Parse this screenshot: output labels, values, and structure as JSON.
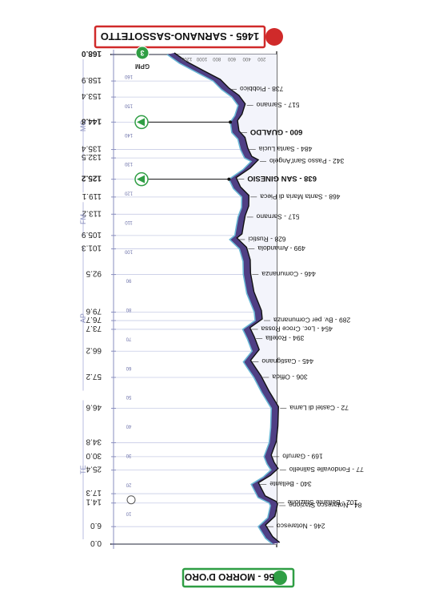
{
  "chart_data": {
    "type": "area",
    "orientation": "rotated-180",
    "start": {
      "altitude": "56",
      "name": "MORRO D'ORO",
      "label": "56 - MORRO D'ORO"
    },
    "finish": {
      "altitude": "1465",
      "name": "SARNANO-SASSOTETTO",
      "label": "1465 - SARNANO-SASSOTETTO"
    },
    "altitude_ticks": [
      "200",
      "400",
      "600",
      "800",
      "1000",
      "1200"
    ],
    "km_ticks": [
      "10",
      "20",
      "30",
      "40",
      "50",
      "60",
      "70",
      "80",
      "90",
      "100",
      "110",
      "120",
      "130",
      "140",
      "150",
      "160"
    ],
    "zones": [
      {
        "name": "TE",
        "from_km": 0,
        "to_km": 51
      },
      {
        "name": "AP",
        "from_km": 51,
        "to_km": 104
      },
      {
        "name": "FM",
        "from_km": 104,
        "to_km": 119
      },
      {
        "name": "MC",
        "from_km": 119,
        "to_km": 168
      }
    ],
    "profile": [
      {
        "km": 0.0,
        "altitude": 56
      },
      {
        "km": 2,
        "altitude": 150
      },
      {
        "km": 6.0,
        "altitude": 246,
        "label": "246 - Notaresco"
      },
      {
        "km": 9,
        "altitude": 120
      },
      {
        "km": 13.2,
        "altitude": 84,
        "label": "84 - Notaresco Stazione"
      },
      {
        "km": 14.1,
        "altitude": 102,
        "label": "102 - Bellante Stazione"
      },
      {
        "km": 16,
        "altitude": 250
      },
      {
        "km": 20.5,
        "altitude": 340,
        "label": "340 - Bellante"
      },
      {
        "km": 23,
        "altitude": 180
      },
      {
        "km": 25.4,
        "altitude": 77,
        "label": "77 - Fondovalle Salinello"
      },
      {
        "km": 27.5,
        "altitude": 130
      },
      {
        "km": 30.0,
        "altitude": 169,
        "label": "169 - Garrufo"
      },
      {
        "km": 34.8,
        "altitude": 100
      },
      {
        "km": 40,
        "altitude": 80
      },
      {
        "km": 46.6,
        "altitude": 72,
        "label": "72 - Castel di Lama"
      },
      {
        "km": 52,
        "altitude": 200
      },
      {
        "km": 57.2,
        "altitude": 306,
        "label": "306 - Offida"
      },
      {
        "km": 60,
        "altitude": 380
      },
      {
        "km": 62.5,
        "altitude": 445,
        "label": "445 - Castignano"
      },
      {
        "km": 66.2,
        "altitude": 330
      },
      {
        "km": 70.5,
        "altitude": 394,
        "label": "394 - Rotella"
      },
      {
        "km": 73.7,
        "altitude": 454,
        "label": "454 - Loc. Croce Rossa"
      },
      {
        "km": 76.7,
        "altitude": 289,
        "label": "289 - Bv. per Comunanza"
      },
      {
        "km": 79.6,
        "altitude": 300
      },
      {
        "km": 86,
        "altitude": 400
      },
      {
        "km": 92.5,
        "altitude": 446,
        "label": "446 - Comunanza"
      },
      {
        "km": 97,
        "altitude": 450
      },
      {
        "km": 101.3,
        "altitude": 499,
        "label": "499 - Amandola"
      },
      {
        "km": 104.5,
        "altitude": 628,
        "label": "628 - Rustici"
      },
      {
        "km": 105.9,
        "altitude": 560
      },
      {
        "km": 109,
        "altitude": 540
      },
      {
        "km": 112.2,
        "altitude": 517,
        "label": "517 - Sarnano"
      },
      {
        "km": 115.5,
        "altitude": 470
      },
      {
        "km": 119.1,
        "altitude": 468,
        "label": "468 - Santa Maria di Pieca"
      },
      {
        "km": 122,
        "altitude": 580
      },
      {
        "km": 125.2,
        "altitude": 638,
        "label": "638 - SAN GINESIO",
        "bold": true
      },
      {
        "km": 128.5,
        "altitude": 450
      },
      {
        "km": 131.3,
        "altitude": 342,
        "label": "342 - Passo Sant'Angelo"
      },
      {
        "km": 132.5,
        "altitude": 430
      },
      {
        "km": 135.4,
        "altitude": 484,
        "label": "484 - Santa Lucia"
      },
      {
        "km": 139,
        "altitude": 520
      },
      {
        "km": 141.2,
        "altitude": 600,
        "label": "600 - GUALDO",
        "bold": true
      },
      {
        "km": 144.8,
        "altitude": 620
      },
      {
        "km": 147,
        "altitude": 560
      },
      {
        "km": 150.5,
        "altitude": 517,
        "label": "517 - Sarnano"
      },
      {
        "km": 153.4,
        "altitude": 600
      },
      {
        "km": 156,
        "altitude": 738,
        "label": "738 - Piobbico"
      },
      {
        "km": 158.9,
        "altitude": 850
      },
      {
        "km": 162,
        "altitude": 1080
      },
      {
        "km": 165,
        "altitude": 1300
      },
      {
        "km": 168.0,
        "altitude": 1465
      }
    ],
    "ref_points": [
      {
        "km": 0.0,
        "label": "0.0"
      },
      {
        "km": 6.0,
        "label": "6.0"
      },
      {
        "km": 14.1,
        "label": "14.1"
      },
      {
        "km": 17.3,
        "label": "17.3"
      },
      {
        "km": 25.4,
        "label": "25.4"
      },
      {
        "km": 30.0,
        "label": "30.0"
      },
      {
        "km": 34.8,
        "label": "34.8"
      },
      {
        "km": 46.6,
        "label": "46.6"
      },
      {
        "km": 57.2,
        "label": "57.2"
      },
      {
        "km": 66.2,
        "label": "66.2"
      },
      {
        "km": 73.7,
        "label": "73.7"
      },
      {
        "km": 76.7,
        "label": "76.7"
      },
      {
        "km": 79.6,
        "label": "79.6"
      },
      {
        "km": 92.5,
        "label": "92.5"
      },
      {
        "km": 101.3,
        "label": "101.3"
      },
      {
        "km": 105.9,
        "label": "105.9"
      },
      {
        "km": 113.2,
        "label": "113.2"
      },
      {
        "km": 119.1,
        "label": "119.1"
      },
      {
        "km": 125.2,
        "label": "125.2",
        "bold": true
      },
      {
        "km": 132.5,
        "label": "132.5"
      },
      {
        "km": 135.4,
        "label": "135.4"
      },
      {
        "km": 144.8,
        "label": "144.8",
        "bold": true
      },
      {
        "km": 153.4,
        "label": "153.4"
      },
      {
        "km": 158.9,
        "label": "158.9"
      },
      {
        "km": 168.0,
        "label": "168.0",
        "bold": true
      }
    ],
    "sprints": [
      {
        "km": 125.2,
        "marker": "green-triangle"
      },
      {
        "km": 144.8,
        "marker": "green-triangle"
      }
    ],
    "special_markers": [
      {
        "km": 15.2,
        "kind": "feed"
      },
      {
        "km": 168.0,
        "kind": "gpm",
        "text": "GPM",
        "level": "3"
      }
    ],
    "ylim": [
      0,
      1500
    ],
    "xlim": [
      0,
      168
    ],
    "colors": {
      "fill": "#4f3f84",
      "profile_stroke": "#6ab8d6",
      "outline": "#111111",
      "grid": "#c7cce6",
      "axis": "#8a8fbf",
      "finish_red": "#d02a2a",
      "start_green": "#2f9e44"
    }
  }
}
